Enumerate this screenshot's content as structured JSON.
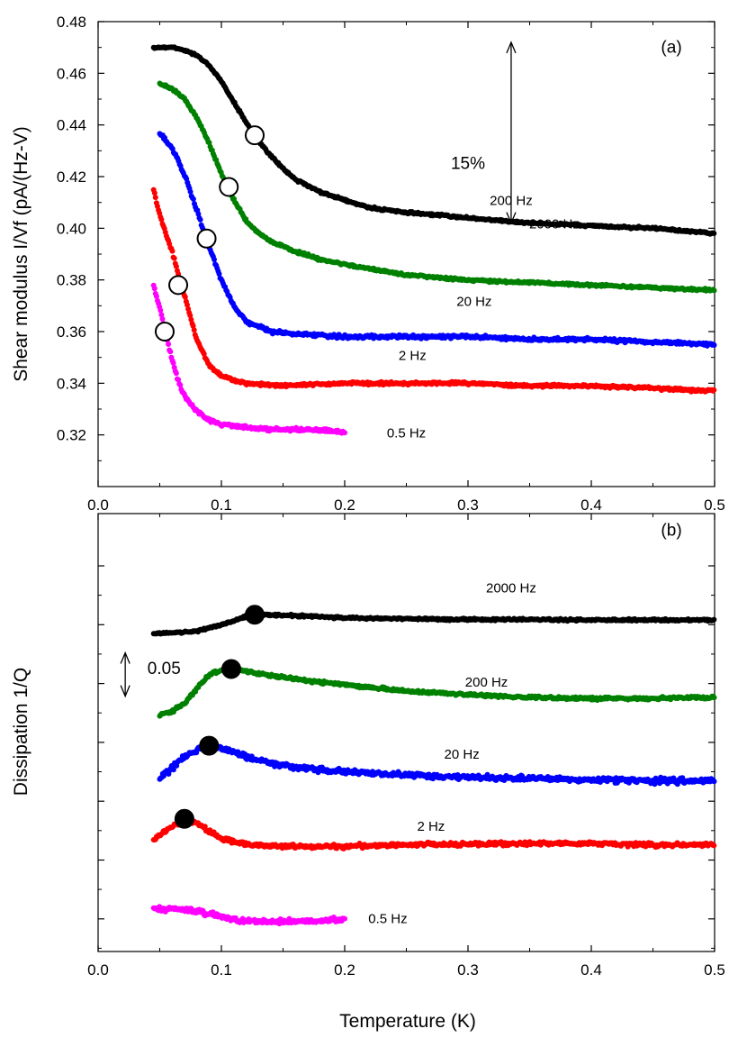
{
  "xlabel": "Temperature (K)",
  "chart_data": [
    {
      "type": "scatter",
      "panel_label": "(a)",
      "ylabel": "Shear modulus   I/Vf  (pA/(Hz-V)",
      "xlim": [
        0.0,
        0.5
      ],
      "ylim": [
        0.3,
        0.48
      ],
      "xticks": [
        "0.0",
        "0.1",
        "0.2",
        "0.3",
        "0.4",
        "0.5"
      ],
      "yticks": [
        "0.32",
        "0.34",
        "0.36",
        "0.38",
        "0.40",
        "0.42",
        "0.44",
        "0.46",
        "0.48"
      ],
      "annotation": {
        "label": "15%",
        "y_from": 0.402,
        "y_to": 0.472,
        "x": 0.335
      },
      "series": [
        {
          "name": "2000 Hz",
          "color": "#000000",
          "points": [
            [
              0.045,
              0.47
            ],
            [
              0.06,
              0.47
            ],
            [
              0.07,
              0.469
            ],
            [
              0.08,
              0.467
            ],
            [
              0.09,
              0.463
            ],
            [
              0.1,
              0.457
            ],
            [
              0.11,
              0.449
            ],
            [
              0.12,
              0.441
            ],
            [
              0.13,
              0.434
            ],
            [
              0.14,
              0.428
            ],
            [
              0.15,
              0.423
            ],
            [
              0.16,
              0.419
            ],
            [
              0.18,
              0.414
            ],
            [
              0.2,
              0.411
            ],
            [
              0.22,
              0.408
            ],
            [
              0.25,
              0.406
            ],
            [
              0.28,
              0.405
            ],
            [
              0.3,
              0.404
            ],
            [
              0.35,
              0.402
            ],
            [
              0.4,
              0.401
            ],
            [
              0.45,
              0.4
            ],
            [
              0.5,
              0.398
            ]
          ],
          "marker": [
            0.127,
            0.436
          ]
        },
        {
          "name": "200 Hz",
          "color": "#008000",
          "points": [
            [
              0.05,
              0.456
            ],
            [
              0.06,
              0.454
            ],
            [
              0.07,
              0.45
            ],
            [
              0.08,
              0.443
            ],
            [
              0.09,
              0.433
            ],
            [
              0.1,
              0.421
            ],
            [
              0.11,
              0.411
            ],
            [
              0.12,
              0.403
            ],
            [
              0.13,
              0.398
            ],
            [
              0.14,
              0.395
            ],
            [
              0.16,
              0.391
            ],
            [
              0.18,
              0.388
            ],
            [
              0.2,
              0.386
            ],
            [
              0.25,
              0.382
            ],
            [
              0.3,
              0.38
            ],
            [
              0.35,
              0.379
            ],
            [
              0.4,
              0.378
            ],
            [
              0.45,
              0.377
            ],
            [
              0.5,
              0.376
            ]
          ],
          "marker": [
            0.106,
            0.416
          ]
        },
        {
          "name": "20 Hz",
          "color": "#0000ff",
          "points": [
            [
              0.05,
              0.437
            ],
            [
              0.06,
              0.431
            ],
            [
              0.07,
              0.421
            ],
            [
              0.08,
              0.407
            ],
            [
              0.09,
              0.393
            ],
            [
              0.1,
              0.38
            ],
            [
              0.11,
              0.37
            ],
            [
              0.12,
              0.364
            ],
            [
              0.13,
              0.362
            ],
            [
              0.14,
              0.36
            ],
            [
              0.16,
              0.359
            ],
            [
              0.2,
              0.358
            ],
            [
              0.25,
              0.358
            ],
            [
              0.3,
              0.358
            ],
            [
              0.35,
              0.357
            ],
            [
              0.4,
              0.357
            ],
            [
              0.45,
              0.356
            ],
            [
              0.5,
              0.355
            ]
          ],
          "marker": [
            0.088,
            0.396
          ]
        },
        {
          "name": "2 Hz",
          "color": "#ff0000",
          "points": [
            [
              0.045,
              0.415
            ],
            [
              0.05,
              0.405
            ],
            [
              0.06,
              0.391
            ],
            [
              0.07,
              0.374
            ],
            [
              0.08,
              0.357
            ],
            [
              0.09,
              0.347
            ],
            [
              0.1,
              0.343
            ],
            [
              0.11,
              0.341
            ],
            [
              0.12,
              0.34
            ],
            [
              0.15,
              0.339
            ],
            [
              0.2,
              0.34
            ],
            [
              0.25,
              0.34
            ],
            [
              0.3,
              0.34
            ],
            [
              0.35,
              0.339
            ],
            [
              0.4,
              0.339
            ],
            [
              0.45,
              0.338
            ],
            [
              0.5,
              0.337
            ]
          ],
          "marker": [
            0.065,
            0.378
          ]
        },
        {
          "name": "0.5 Hz",
          "color": "#ff00ff",
          "points": [
            [
              0.045,
              0.378
            ],
            [
              0.05,
              0.369
            ],
            [
              0.055,
              0.359
            ],
            [
              0.06,
              0.349
            ],
            [
              0.065,
              0.341
            ],
            [
              0.07,
              0.335
            ],
            [
              0.08,
              0.329
            ],
            [
              0.09,
              0.326
            ],
            [
              0.1,
              0.324
            ],
            [
              0.12,
              0.323
            ],
            [
              0.14,
              0.322
            ],
            [
              0.16,
              0.322
            ],
            [
              0.18,
              0.322
            ],
            [
              0.2,
              0.321
            ]
          ],
          "marker": [
            0.054,
            0.36
          ]
        }
      ]
    },
    {
      "type": "scatter",
      "panel_label": "(b)",
      "ylabel": "Dissipation 1/Q",
      "xlim": [
        0.0,
        0.5
      ],
      "ylim": [
        0.0,
        1.0
      ],
      "xticks": [
        "0.0",
        "0.1",
        "0.2",
        "0.3",
        "0.4",
        "0.5"
      ],
      "ytick_count": 7,
      "annotation": {
        "label": "0.05",
        "y_from": 0.583,
        "y_to": 0.682,
        "x": 0.022
      },
      "series": [
        {
          "name": "2000 Hz",
          "color": "#000000",
          "points": [
            [
              0.045,
              0.726
            ],
            [
              0.06,
              0.728
            ],
            [
              0.08,
              0.732
            ],
            [
              0.1,
              0.746
            ],
            [
              0.12,
              0.765
            ],
            [
              0.13,
              0.77
            ],
            [
              0.15,
              0.768
            ],
            [
              0.2,
              0.762
            ],
            [
              0.25,
              0.76
            ],
            [
              0.3,
              0.758
            ],
            [
              0.35,
              0.758
            ],
            [
              0.4,
              0.757
            ],
            [
              0.45,
              0.757
            ],
            [
              0.5,
              0.757
            ]
          ],
          "marker": [
            0.127,
            0.769
          ]
        },
        {
          "name": "200 Hz",
          "color": "#008000",
          "points": [
            [
              0.05,
              0.541
            ],
            [
              0.06,
              0.548
            ],
            [
              0.07,
              0.566
            ],
            [
              0.08,
              0.6
            ],
            [
              0.09,
              0.631
            ],
            [
              0.1,
              0.643
            ],
            [
              0.11,
              0.645
            ],
            [
              0.12,
              0.64
            ],
            [
              0.14,
              0.63
            ],
            [
              0.16,
              0.622
            ],
            [
              0.2,
              0.609
            ],
            [
              0.25,
              0.595
            ],
            [
              0.3,
              0.586
            ],
            [
              0.35,
              0.58
            ],
            [
              0.4,
              0.578
            ],
            [
              0.45,
              0.578
            ],
            [
              0.5,
              0.58
            ]
          ],
          "marker": [
            0.108,
            0.645
          ]
        },
        {
          "name": "20 Hz",
          "color": "#0000ff",
          "points": [
            [
              0.05,
              0.395
            ],
            [
              0.06,
              0.42
            ],
            [
              0.07,
              0.445
            ],
            [
              0.08,
              0.46
            ],
            [
              0.09,
              0.468
            ],
            [
              0.1,
              0.465
            ],
            [
              0.11,
              0.455
            ],
            [
              0.12,
              0.445
            ],
            [
              0.14,
              0.43
            ],
            [
              0.16,
              0.42
            ],
            [
              0.2,
              0.41
            ],
            [
              0.25,
              0.403
            ],
            [
              0.3,
              0.398
            ],
            [
              0.35,
              0.395
            ],
            [
              0.4,
              0.392
            ],
            [
              0.45,
              0.39
            ],
            [
              0.5,
              0.39
            ]
          ],
          "marker": [
            0.09,
            0.47
          ]
        },
        {
          "name": "2 Hz",
          "color": "#ff0000",
          "points": [
            [
              0.045,
              0.257
            ],
            [
              0.05,
              0.265
            ],
            [
              0.06,
              0.285
            ],
            [
              0.07,
              0.3
            ],
            [
              0.08,
              0.295
            ],
            [
              0.09,
              0.275
            ],
            [
              0.1,
              0.258
            ],
            [
              0.12,
              0.245
            ],
            [
              0.15,
              0.24
            ],
            [
              0.2,
              0.24
            ],
            [
              0.25,
              0.244
            ],
            [
              0.3,
              0.245
            ],
            [
              0.35,
              0.247
            ],
            [
              0.4,
              0.246
            ],
            [
              0.45,
              0.244
            ],
            [
              0.5,
              0.244
            ]
          ],
          "marker": [
            0.07,
            0.303
          ]
        },
        {
          "name": "0.5 Hz",
          "color": "#ff00ff",
          "points": [
            [
              0.045,
              0.095
            ],
            [
              0.06,
              0.098
            ],
            [
              0.08,
              0.092
            ],
            [
              0.1,
              0.078
            ],
            [
              0.12,
              0.07
            ],
            [
              0.14,
              0.068
            ],
            [
              0.16,
              0.068
            ],
            [
              0.18,
              0.07
            ],
            [
              0.2,
              0.072
            ]
          ],
          "marker": null
        }
      ]
    }
  ]
}
